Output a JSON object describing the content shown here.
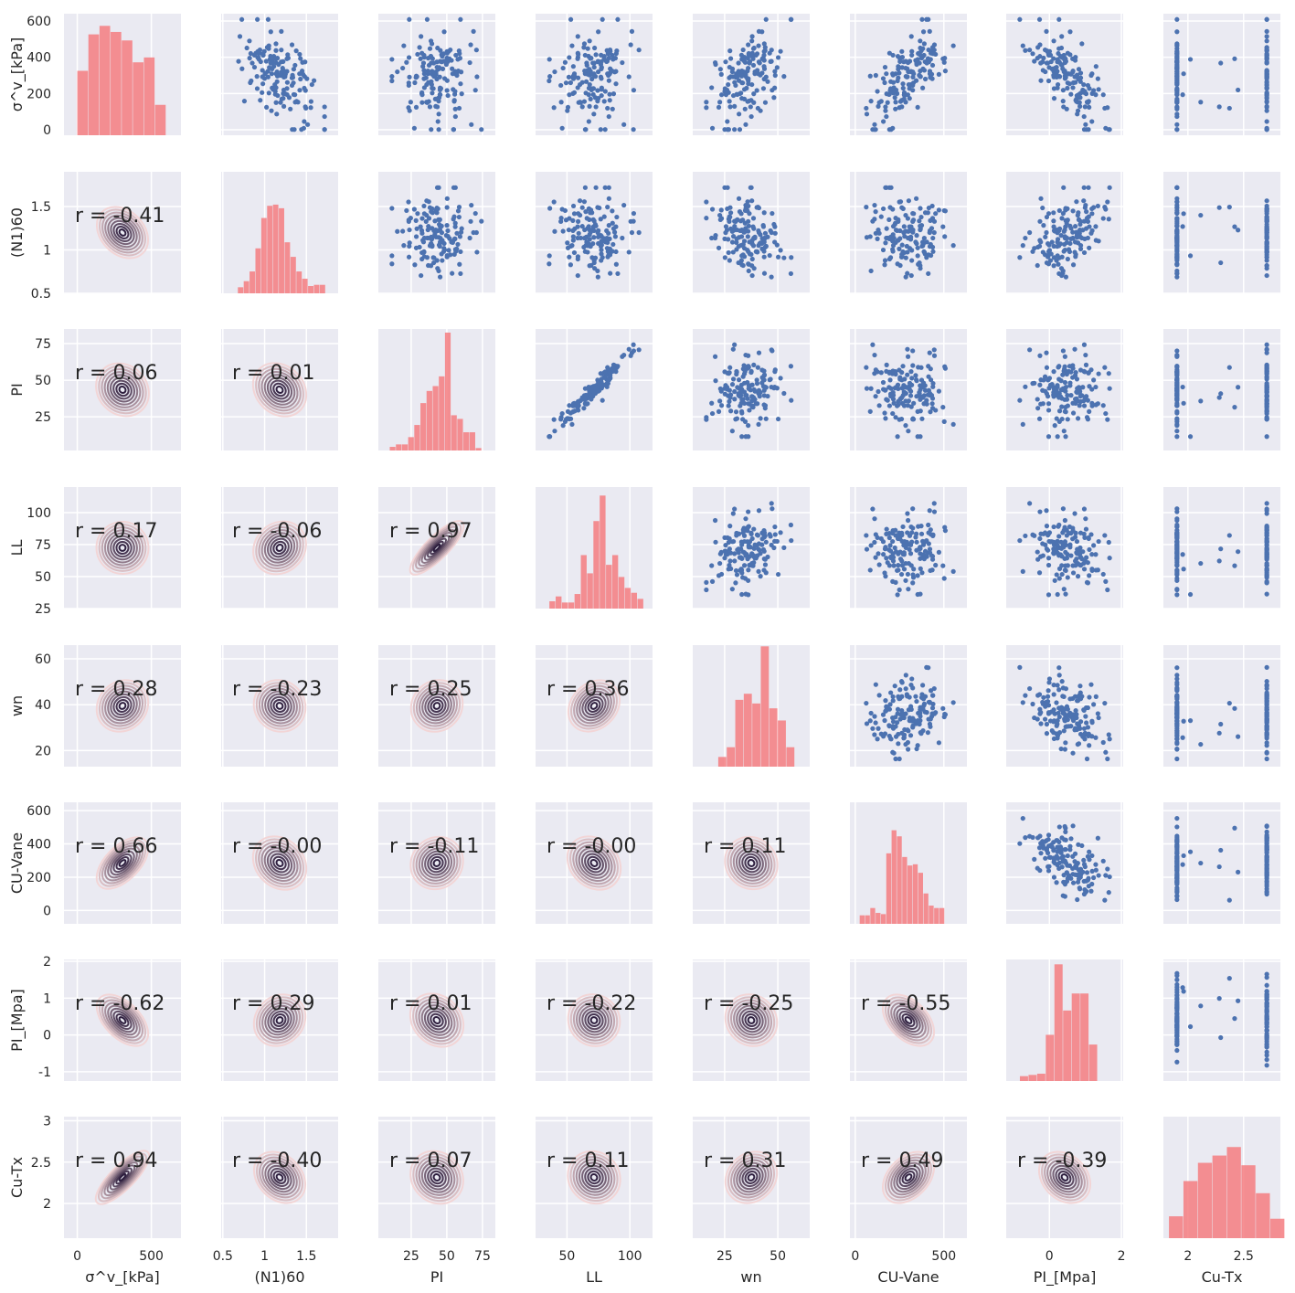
{
  "chart_data": {
    "type": "pairplot",
    "description": "Pair grid: diagonal histograms, upper scatter plots, lower KDE contour plots with Pearson r annotations",
    "variables": [
      "σ^v_[kPa]",
      "(N1)60",
      "PI",
      "LL",
      "wn",
      "CU-Vane",
      "PI_[Mpa]",
      "Cu-Tx"
    ],
    "r_prefix": "r = ",
    "axes": [
      {
        "name": "σ^v_[kPa]",
        "lim": [
          -90,
          700
        ],
        "ticks": [
          0,
          500
        ],
        "ylim": [
          -30,
          640
        ],
        "yticks": [
          0,
          200,
          400,
          600
        ]
      },
      {
        "name": "(N1)60",
        "lim": [
          0.48,
          1.88
        ],
        "ticks": [
          0.5,
          1.0,
          1.5
        ],
        "ylim": [
          0.5,
          1.9
        ],
        "yticks": [
          0.5,
          1.0,
          1.5
        ]
      },
      {
        "name": "PI",
        "lim": [
          2,
          84
        ],
        "ticks": [
          25,
          50,
          75
        ],
        "ylim": [
          2,
          85
        ],
        "yticks": [
          25,
          50,
          75
        ]
      },
      {
        "name": "LL",
        "lim": [
          25,
          118
        ],
        "ticks": [
          50,
          100
        ],
        "ylim": [
          25,
          120
        ],
        "yticks": [
          25,
          50,
          75,
          100
        ]
      },
      {
        "name": "wn",
        "lim": [
          10,
          65
        ],
        "ticks": [
          25,
          50
        ],
        "ylim": [
          13,
          66
        ],
        "yticks": [
          20,
          40,
          60
        ]
      },
      {
        "name": "CU-Vane",
        "lim": [
          -30,
          630
        ],
        "ticks": [
          0,
          500
        ],
        "ylim": [
          -80,
          650
        ],
        "yticks": [
          0,
          200,
          400,
          600
        ]
      },
      {
        "name": "PI_[Mpa]",
        "lim": [
          -1.2,
          2.05
        ],
        "ticks": [
          0,
          2
        ],
        "ylim": [
          -1.25,
          2.05
        ],
        "yticks": [
          -1,
          0,
          1,
          2
        ]
      },
      {
        "name": "Cu-Tx",
        "lim": [
          1.78,
          2.83
        ],
        "ticks": [
          2.0,
          2.5
        ],
        "ylim": [
          1.58,
          3.05
        ],
        "yticks": [
          2.0,
          2.5,
          3.0
        ]
      }
    ],
    "correlations": [
      [
        "1",
        "-0.41",
        "0.06",
        "0.17",
        "0.28",
        "0.66",
        "-0.62",
        "0.94"
      ],
      [
        "-0.41",
        "1",
        "0.01",
        "-0.06",
        "-0.23",
        "-0.00",
        "0.29",
        "-0.40"
      ],
      [
        "0.06",
        "0.01",
        "1",
        "0.97",
        "0.25",
        "-0.11",
        "0.01",
        "0.07"
      ],
      [
        "0.17",
        "-0.06",
        "0.97",
        "1",
        "0.36",
        "-0.00",
        "-0.22",
        "0.11"
      ],
      [
        "0.28",
        "-0.23",
        "0.25",
        "0.36",
        "1",
        "0.11",
        "-0.25",
        "0.31"
      ],
      [
        "0.66",
        "-0.00",
        "-0.11",
        "-0.00",
        "0.11",
        "1",
        "-0.55",
        "0.49"
      ],
      [
        "-0.62",
        "0.29",
        "0.01",
        "-0.22",
        "-0.25",
        "-0.55",
        "1",
        "-0.39"
      ],
      [
        "0.94",
        "-0.40",
        "0.07",
        "0.11",
        "0.31",
        "0.49",
        "-0.39",
        "1"
      ]
    ],
    "histograms": [
      {
        "var": "σ^v_[kPa]",
        "edges": [
          0,
          75,
          150,
          225,
          300,
          375,
          450,
          525,
          600
        ],
        "heights": [
          0.53,
          0.83,
          0.9,
          0.85,
          0.78,
          0.6,
          0.64,
          0.25
        ]
      },
      {
        "var": "(N1)60",
        "edges": [
          0.68,
          0.75,
          0.82,
          0.89,
          0.96,
          1.03,
          1.1,
          1.17,
          1.24,
          1.31,
          1.38,
          1.45,
          1.52,
          1.59,
          1.66,
          1.73
        ],
        "heights": [
          0.05,
          0.1,
          0.18,
          0.37,
          0.62,
          0.72,
          0.73,
          0.7,
          0.42,
          0.3,
          0.18,
          0.12,
          0.06,
          0.07,
          0.07
        ]
      },
      {
        "var": "PI",
        "edges": [
          10,
          14.3,
          18.6,
          22.9,
          27.2,
          31.5,
          35.8,
          40.1,
          44.4,
          48.7,
          53,
          57.3,
          61.6,
          65.9,
          70.2,
          74.5
        ],
        "heights": [
          0.03,
          0.05,
          0.05,
          0.11,
          0.21,
          0.39,
          0.49,
          0.53,
          0.61,
          0.97,
          0.29,
          0.26,
          0.15,
          0.15,
          0.02
        ]
      },
      {
        "var": "LL",
        "edges": [
          36,
          41,
          46,
          51,
          56,
          61,
          66,
          71,
          76,
          81,
          86,
          91,
          96,
          101,
          106,
          111
        ],
        "heights": [
          0.06,
          0.1,
          0.05,
          0.05,
          0.12,
          0.44,
          0.29,
          0.72,
          0.93,
          0.36,
          0.44,
          0.26,
          0.17,
          0.13,
          0.08
        ]
      },
      {
        "var": "wn",
        "edges": [
          22,
          26,
          30,
          34,
          38,
          42,
          46,
          50,
          54,
          58
        ],
        "heights": [
          0.08,
          0.16,
          0.55,
          0.6,
          0.52,
          0.99,
          0.48,
          0.38,
          0.16
        ]
      },
      {
        "var": "CU-Vane",
        "edges": [
          25,
          55,
          85,
          115,
          145,
          175,
          205,
          235,
          265,
          295,
          325,
          355,
          385,
          415,
          445,
          475,
          505
        ],
        "heights": [
          0.07,
          0.07,
          0.13,
          0.09,
          0.08,
          0.58,
          0.77,
          0.72,
          0.55,
          0.48,
          0.49,
          0.42,
          0.25,
          0.15,
          0.13,
          0.13
        ]
      },
      {
        "var": "PI_[Mpa]",
        "edges": [
          -0.82,
          -0.58,
          -0.34,
          -0.1,
          0.14,
          0.38,
          0.62,
          0.86,
          1.1,
          1.34,
          1.58
        ],
        "heights": [
          0.04,
          0.05,
          0.06,
          0.38,
          0.96,
          0.58,
          0.72,
          0.72,
          0.3,
          0.0
        ]
      },
      {
        "var": "Cu-Tx",
        "edges": [
          1.83,
          1.96,
          2.09,
          2.22,
          2.35,
          2.48,
          2.61,
          2.74,
          2.87
        ],
        "heights": [
          0.18,
          0.47,
          0.62,
          0.68,
          0.75,
          0.6,
          0.37,
          0.16
        ]
      }
    ],
    "colors": {
      "background": "#eaeaf2",
      "grid": "#ffffff",
      "scatter": "#4c72b0",
      "histogram": "#f47c80",
      "kde_light": "#f2d5d6",
      "kde_dark": "#2d1e3e",
      "text": "#262626"
    }
  }
}
